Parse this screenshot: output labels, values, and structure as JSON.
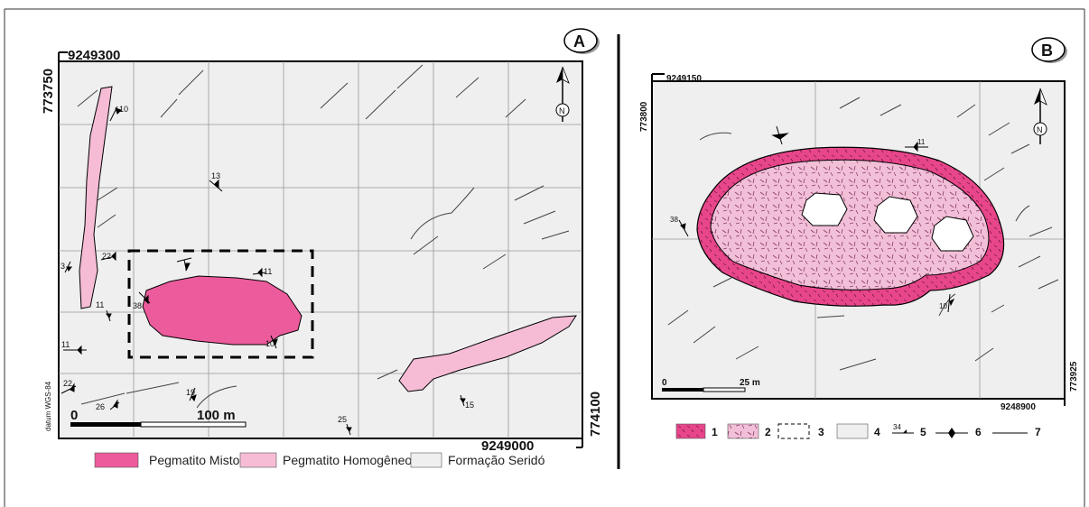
{
  "map_a": {
    "panel_label": "A",
    "coord_top": "9249300",
    "coord_left": "773750",
    "coord_right": "774100",
    "coord_bottom": "9249000",
    "north_label": "N",
    "datum": "datum WGS-84",
    "scale_zero": "0",
    "scale_label": "100 m",
    "dips": [
      "10",
      "13",
      "3",
      "22",
      "11",
      "38",
      "11",
      "10",
      "11",
      "22",
      "26",
      "19",
      "25",
      "15"
    ],
    "legend": [
      {
        "label": "Pegmatito Misto",
        "color": "#ec5b9b"
      },
      {
        "label": "Pegmatito Homogêneo",
        "color": "#f6bcd6"
      },
      {
        "label": "Formação Seridó",
        "color": "#efefef"
      }
    ]
  },
  "map_b": {
    "panel_label": "B",
    "coord_top": "9249150",
    "coord_left": "773800",
    "coord_right": "773925",
    "coord_bottom": "9248900",
    "north_label": "N",
    "scale_zero": "0",
    "scale_label": "25 m",
    "dips": [
      "11",
      "38",
      "10"
    ],
    "legend": [
      {
        "num": "1"
      },
      {
        "num": "2"
      },
      {
        "num": "3"
      },
      {
        "num": "4"
      },
      {
        "num": "5",
        "dip": "34"
      },
      {
        "num": "6"
      },
      {
        "num": "7"
      }
    ]
  }
}
